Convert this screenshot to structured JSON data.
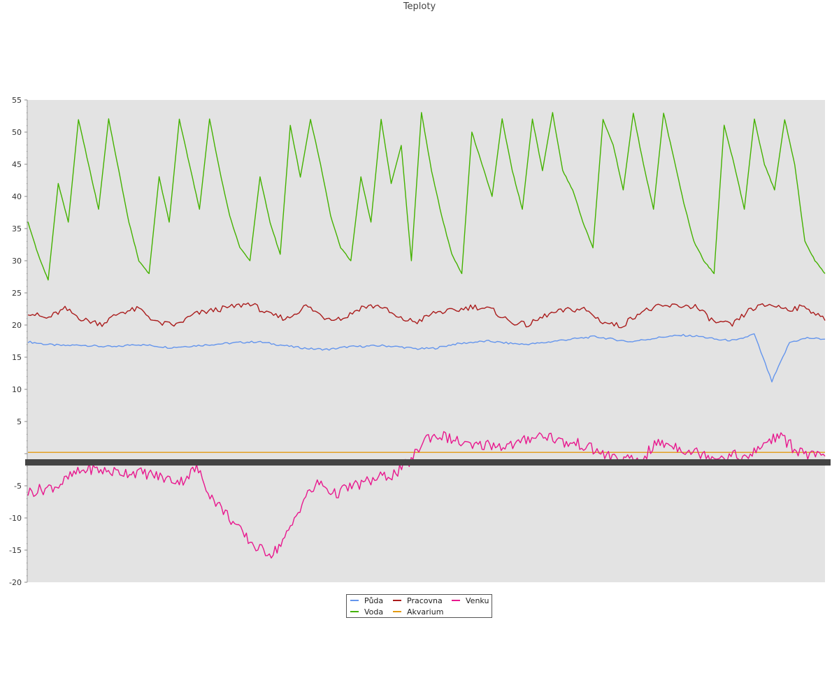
{
  "chart_data": {
    "type": "line",
    "title": "Teploty",
    "ylim": [
      -20,
      55
    ],
    "y_ticks": [
      "55",
      "50",
      "45",
      "40",
      "35",
      "30",
      "25",
      "20",
      "15",
      "10",
      "5",
      "-5",
      "-10",
      "-15",
      "-20"
    ],
    "grid": false,
    "legend_position": "bottom-center",
    "background_color": "#e3e3e3",
    "series": [
      {
        "name": "Půda",
        "color": "#6495ed",
        "values": [
          17.4,
          17.0,
          16.8,
          16.9,
          16.7,
          16.6,
          17.0,
          16.8,
          16.5,
          16.7,
          16.9,
          17.1,
          17.3,
          17.4,
          17.0,
          16.6,
          16.3,
          16.2,
          16.6,
          16.7,
          16.8,
          16.6,
          16.3,
          16.4,
          17.0,
          17.3,
          17.5,
          17.2,
          17.0,
          17.2,
          17.6,
          17.9,
          18.2,
          17.8,
          17.4,
          17.8,
          18.2,
          18.4,
          18.2,
          17.7,
          17.6,
          18.6,
          11.2,
          17.3,
          18.0,
          17.8
        ]
      },
      {
        "name": "Voda",
        "color": "#44b200",
        "values": [
          36.0,
          31.0,
          27.0,
          42.0,
          36.0,
          52.0,
          45.0,
          38.0,
          52.0,
          44.0,
          36.0,
          30.0,
          28.0,
          43.0,
          36.0,
          52.0,
          45.0,
          38.0,
          52.0,
          44.0,
          37.0,
          32.0,
          30.0,
          43.0,
          36.0,
          31.0,
          51.0,
          43.0,
          52.0,
          45.0,
          37.0,
          32.0,
          30.0,
          43.0,
          36.0,
          52.0,
          42.0,
          48.0,
          30.0,
          53.0,
          44.0,
          37.0,
          31.0,
          28.0,
          50.0,
          45.0,
          40.0,
          52.0,
          44.0,
          38.0,
          52.0,
          44.0,
          53.0,
          44.0,
          41.0,
          36.0,
          32.0,
          52.0,
          48.0,
          41.0,
          53.0,
          45.0,
          38.0,
          53.0,
          46.0,
          39.0,
          33.0,
          30.0,
          28.0,
          51.0,
          45.0,
          38.0,
          52.0,
          45.0,
          41.0,
          52.0,
          45.0,
          33.0,
          30.0,
          28.0
        ]
      },
      {
        "name": "Pracovna",
        "color": "#aa1c1c",
        "values": [
          22.0,
          21.0,
          22.5,
          20.8,
          20.2,
          22.0,
          22.5,
          20.3,
          20.0,
          21.7,
          22.3,
          22.8,
          23.4,
          21.6,
          21.0,
          23.0,
          21.2,
          21.0,
          22.8,
          23.0,
          21.0,
          20.5,
          22.0,
          22.2,
          22.9,
          22.4,
          20.5,
          20.0,
          21.6,
          22.3,
          22.5,
          20.5,
          19.8,
          22.0,
          22.8,
          23.0,
          22.9,
          20.5,
          20.0,
          22.5,
          23.2,
          22.5,
          22.8,
          20.7
        ]
      },
      {
        "name": "Akvarium",
        "color": "#e39a12",
        "values": [
          0.2,
          0.2
        ]
      },
      {
        "name": "Venku",
        "color": "#e8188e",
        "values": [
          -6.0,
          -5.5,
          -4.9,
          -3.2,
          -2.3,
          -2.7,
          -2.9,
          -2.9,
          -3.2,
          -3.9,
          -4.3,
          -2.2,
          -6.8,
          -9.5,
          -12.5,
          -14.8,
          -15.5,
          -12.3,
          -7.0,
          -4.5,
          -6.3,
          -5.2,
          -4.5,
          -3.7,
          -3.1,
          -1.0,
          2.6,
          2.8,
          1.9,
          1.0,
          1.5,
          1.2,
          1.5,
          2.8,
          2.8,
          1.6,
          1.5,
          0.5,
          -0.5,
          -1.0,
          -1.0,
          1.6,
          1.4,
          0.5,
          0.0,
          -0.5,
          -0.2,
          -0.8,
          1.6,
          2.8,
          0.8,
          -0.4,
          -0.4
        ]
      }
    ]
  }
}
